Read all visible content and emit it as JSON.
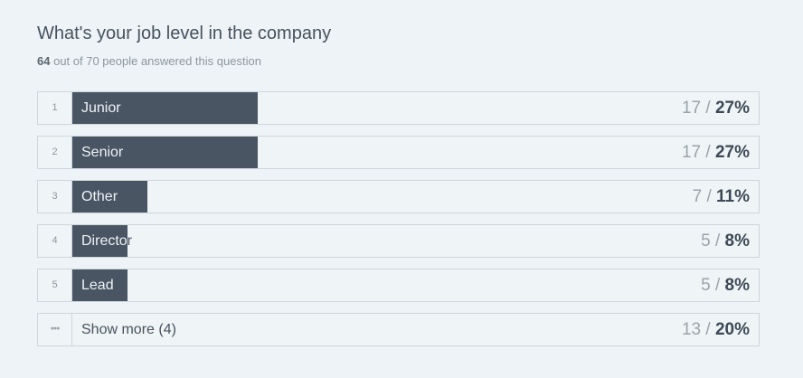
{
  "header": {
    "title": "What's your job level in the company",
    "answered": "64",
    "summary_rest": "out of 70 people answered this question"
  },
  "separator": "/",
  "rows": [
    {
      "rank": "1",
      "label": "Junior",
      "count": 17,
      "percent": 27,
      "percent_label": "27%"
    },
    {
      "rank": "2",
      "label": "Senior",
      "count": 17,
      "percent": 27,
      "percent_label": "27%"
    },
    {
      "rank": "3",
      "label": "Other",
      "count": 7,
      "percent": 11,
      "percent_label": "11%"
    },
    {
      "rank": "4",
      "label": "Director",
      "count": 5,
      "percent": 8,
      "percent_label": "8%"
    },
    {
      "rank": "5",
      "label": "Lead",
      "count": 5,
      "percent": 8,
      "percent_label": "8%"
    }
  ],
  "show_more": {
    "label": "Show more (4)",
    "count": 13,
    "percent_label": "20%"
  }
}
